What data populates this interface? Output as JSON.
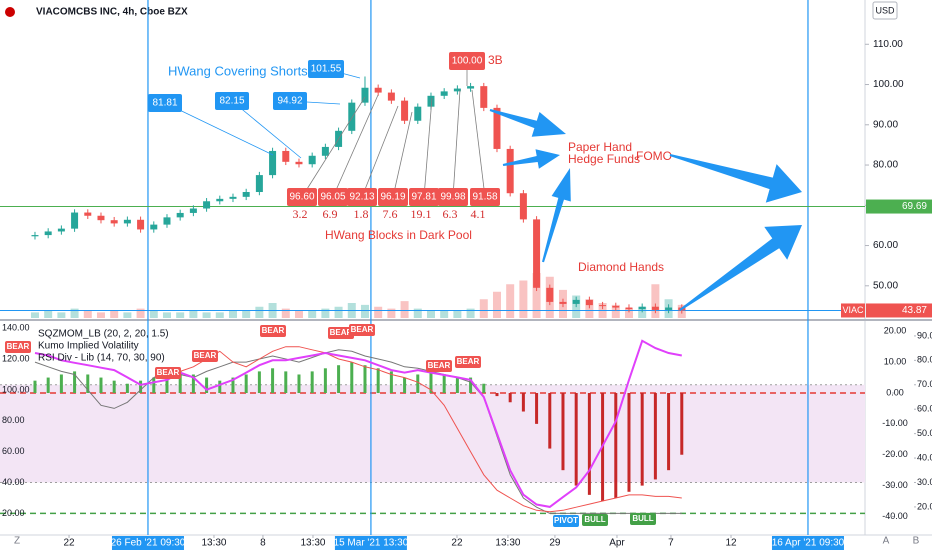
{
  "header": {
    "title": "VIACOMCBS INC, 4h, Cboe BZX",
    "currency": "USD",
    "corner_left": "Z",
    "corner_right": [
      "A",
      "B"
    ]
  },
  "chart_data": [
    {
      "type": "candlestick",
      "up_color": "#26a69a",
      "down_color": "#ef5350",
      "xlim": [
        -2.65,
        62.88
      ],
      "xticks": [
        {
          "value": 2.58,
          "label": "22"
        },
        {
          "value": 13.56,
          "label": "13:30"
        },
        {
          "value": 17.27,
          "label": "8"
        },
        {
          "value": 21.06,
          "label": "13:30"
        },
        {
          "value": 31.97,
          "label": "22"
        },
        {
          "value": 35.83,
          "label": "13:30"
        },
        {
          "value": 39.39,
          "label": "29"
        },
        {
          "value": 44.09,
          "label": "Apr"
        },
        {
          "value": 48.18,
          "label": "7"
        },
        {
          "value": 52.73,
          "label": "12"
        }
      ],
      "vlines": [
        {
          "value": 8.56,
          "label": "26 Feb '21 09:30"
        },
        {
          "value": 25.45,
          "label": "15 Mar '21 13:30"
        },
        {
          "value": 58.56,
          "label": "16 Apr '21 09:30"
        }
      ],
      "vline_color": "#2196f3",
      "ylim": [
        42,
        121
      ],
      "yticks": [
        {
          "value": 110,
          "label": "110.00"
        },
        {
          "value": 100,
          "label": "100.00"
        },
        {
          "value": 90,
          "label": "90.00"
        },
        {
          "value": 80,
          "label": "80.00"
        },
        {
          "value": 70,
          "label": "70.00"
        },
        {
          "value": 60,
          "label": "60.00"
        },
        {
          "value": 50,
          "label": "50.00"
        }
      ],
      "open": [
        62.3,
        62.6,
        63.5,
        64.2,
        68.2,
        67.4,
        66.3,
        65.5,
        66.4,
        64.0,
        65.2,
        67.0,
        68.1,
        69.2,
        71.0,
        71.6,
        72.1,
        73.3,
        77.5,
        83.5,
        80.8,
        80.2,
        82.3,
        84.5,
        88.5,
        95.5,
        99.2,
        98.0,
        96.0,
        91.0,
        94.5,
        97.2,
        98.3,
        99.0,
        99.6,
        94.2,
        84.0,
        73.0,
        66.5,
        49.5,
        46.0,
        45.5,
        46.5,
        45.2,
        45.0,
        44.6,
        44.2,
        44.8,
        44.0,
        44.6
      ],
      "high": [
        63.4,
        64.3,
        65.0,
        69.0,
        69.0,
        68.2,
        67.1,
        67.2,
        67.2,
        66.0,
        67.8,
        68.9,
        70.0,
        71.8,
        72.4,
        72.9,
        74.1,
        78.3,
        84.3,
        84.3,
        81.6,
        83.1,
        85.3,
        89.3,
        96.3,
        102.0,
        100.0,
        98.8,
        96.8,
        95.3,
        98.0,
        99.1,
        99.8,
        100.4,
        100.4,
        95.0,
        84.8,
        73.8,
        67.3,
        50.3,
        46.8,
        47.3,
        47.3,
        46.0,
        45.8,
        45.4,
        45.6,
        45.6,
        45.4,
        45.4
      ],
      "low": [
        61.5,
        61.8,
        62.7,
        63.4,
        66.6,
        65.5,
        64.7,
        64.7,
        63.2,
        63.2,
        64.4,
        66.2,
        67.3,
        68.4,
        70.2,
        70.8,
        71.3,
        72.5,
        76.7,
        80.0,
        79.4,
        79.4,
        81.5,
        83.7,
        87.7,
        94.7,
        97.2,
        95.2,
        90.2,
        90.2,
        93.7,
        96.4,
        97.5,
        98.2,
        93.4,
        83.2,
        72.2,
        65.7,
        48.7,
        45.2,
        44.7,
        44.7,
        44.4,
        44.2,
        43.8,
        43.4,
        43.4,
        43.2,
        43.2,
        43.1
      ],
      "close": [
        62.6,
        63.5,
        64.2,
        68.2,
        67.4,
        66.3,
        65.5,
        66.4,
        64.0,
        65.2,
        67.0,
        68.1,
        69.2,
        71.0,
        71.6,
        72.1,
        73.3,
        77.5,
        83.5,
        80.8,
        80.2,
        82.3,
        84.5,
        88.5,
        95.5,
        99.2,
        98.0,
        96.0,
        91.0,
        94.5,
        97.2,
        98.3,
        99.0,
        99.6,
        94.2,
        84.0,
        73.0,
        66.5,
        49.5,
        46.0,
        45.5,
        46.5,
        45.2,
        45.0,
        44.6,
        44.2,
        44.8,
        44.0,
        44.6,
        43.87
      ],
      "volume": [
        3,
        4,
        3,
        5,
        4,
        3,
        4,
        3,
        5,
        4,
        3,
        3,
        4,
        3,
        3,
        4,
        4,
        6,
        8,
        5,
        4,
        4,
        5,
        6,
        8,
        7,
        6,
        5,
        9,
        5,
        4,
        4,
        4,
        5,
        10,
        14,
        18,
        20,
        24,
        22,
        15,
        12,
        10,
        8,
        7,
        5,
        6,
        18,
        10,
        7
      ],
      "hlines": [
        {
          "value": 69.69,
          "label": "69.69",
          "color": "#4caf50"
        },
        {
          "value": 43.87,
          "label": "43.87",
          "color": "#2196f3",
          "box_color": "#ef5350",
          "symbol": "VIAC"
        }
      ],
      "annotations": [
        "HWang Covering Shorts",
        "81.81",
        "82.15",
        "94.92",
        "101.55",
        "100.00",
        "3B",
        "96.60",
        "96.05",
        "92.13",
        "96.19",
        "97.81",
        "99.98",
        "91.58",
        "3.2",
        "6.9",
        "1.8",
        "7.6",
        "19.1",
        "6.3",
        "4.1",
        "HWang Blocks in Dark Pool",
        "Paper Hand",
        "Hedge Funds",
        "FOMO",
        "Diamond Hands"
      ]
    },
    {
      "type": "oscillator",
      "legend": [
        "SQZMOM_LB (20, 2, 20, 1.5)",
        "Kumo Implied Volatility",
        "RSI Div - Lib (14, 70, 30, 90)"
      ],
      "ylim": [
        6,
        144
      ],
      "yticks": [
        {
          "value": 140,
          "label": "140.00"
        },
        {
          "value": 120,
          "label": "120.00"
        },
        {
          "value": 100,
          "label": "100.00"
        },
        {
          "value": 80,
          "label": "80.00"
        },
        {
          "value": 60,
          "label": "60.00"
        },
        {
          "value": 40,
          "label": "40.00"
        },
        {
          "value": 20,
          "label": "20.00"
        }
      ],
      "y2lim": [
        -46,
        23
      ],
      "y2ticks": [
        {
          "value": 20,
          "label": "20.00"
        },
        {
          "value": 10,
          "label": "10.00"
        },
        {
          "value": 0,
          "label": "0.00"
        },
        {
          "value": -10,
          "label": "-10.00"
        },
        {
          "value": -20,
          "label": "-20.00"
        },
        {
          "value": -30,
          "label": "-30.00"
        },
        {
          "value": -40,
          "label": "-40.00"
        }
      ],
      "y3lim": [
        8.5,
        95.7
      ],
      "y3ticks": [
        {
          "value": 90,
          "label": "90.00"
        },
        {
          "value": 80,
          "label": "80.00"
        },
        {
          "value": 70,
          "label": "70.00"
        },
        {
          "value": 60,
          "label": "60.00"
        },
        {
          "value": 50,
          "label": "50.00"
        },
        {
          "value": 40,
          "label": "40.00"
        },
        {
          "value": 30,
          "label": "30.00"
        },
        {
          "value": 20,
          "label": "20.00"
        }
      ],
      "series": [
        {
          "style": "bar",
          "axis": "y2",
          "color": "#4caf50",
          "negative_color": "#c62828",
          "values": [
            4,
            5,
            6,
            7,
            6,
            5,
            4,
            3,
            4,
            5,
            6,
            7,
            6,
            5,
            4,
            5,
            6,
            7,
            8,
            7,
            6,
            7,
            8,
            9,
            10,
            9,
            8,
            7,
            5,
            6,
            7,
            6,
            5,
            5,
            3,
            -1,
            -3,
            -6,
            -10,
            -18,
            -25,
            -30,
            -33,
            -35,
            -34,
            -32,
            -30,
            -28,
            -25,
            -20
          ]
        },
        {
          "style": "line",
          "axis": "y",
          "color": "#777777",
          "values": [
            118,
            115,
            112,
            110,
            100,
            90,
            88,
            92,
            100,
            108,
            112,
            110,
            108,
            112,
            115,
            118,
            118,
            120,
            122,
            120,
            118,
            121,
            124,
            126,
            125,
            122,
            120,
            118,
            115,
            114,
            112,
            110,
            108,
            105,
            95,
            70,
            45,
            30,
            24,
            20,
            20,
            20,
            20,
            20,
            20,
            20,
            20,
            20,
            20,
            20
          ]
        },
        {
          "style": "line",
          "axis": "y",
          "color": "#ef5350",
          "values": [
            null,
            null,
            null,
            null,
            null,
            null,
            null,
            null,
            null,
            null,
            110,
            112,
            115,
            120,
            125,
            118,
            115,
            120,
            125,
            128,
            128,
            126,
            124,
            120,
            118,
            115,
            113,
            110,
            108,
            105,
            100,
            90,
            75,
            60,
            45,
            35,
            30,
            25,
            22,
            21,
            22,
            24,
            26,
            28,
            30,
            32,
            32,
            31,
            31,
            30
          ]
        },
        {
          "style": "line",
          "axis": "y3",
          "color": "#e040fb",
          "values": [
            83,
            82,
            80,
            79,
            78,
            77,
            76,
            73,
            70,
            71,
            72,
            75,
            73,
            68,
            70,
            72,
            75,
            78,
            80,
            80,
            81,
            82,
            83,
            82,
            81,
            80,
            78,
            76,
            75,
            76,
            75,
            74,
            73,
            72,
            65,
            50,
            35,
            25,
            21,
            20,
            24,
            28,
            35,
            45,
            55,
            72,
            88,
            85,
            83,
            82
          ]
        }
      ],
      "levels": [
        {
          "value": 0,
          "axis": "y2",
          "color": "#e53935",
          "style": "dashed"
        },
        {
          "value": 70,
          "axis": "y3",
          "color": "#9e9e9e",
          "style": "dotted"
        },
        {
          "value": 30,
          "axis": "y3",
          "color": "#9e9e9e",
          "style": "dotted"
        },
        {
          "value": 20,
          "axis": "y",
          "color": "#43a047",
          "style": "dashed"
        }
      ],
      "band_color": "#f3e5f5",
      "signals": [
        "BEAR",
        "BEAR",
        "BEAR",
        "BEAR",
        "BEAR",
        "BEAR",
        "BEAR",
        "BEAR",
        "PIVOT",
        "BULL",
        "BULL"
      ]
    }
  ]
}
